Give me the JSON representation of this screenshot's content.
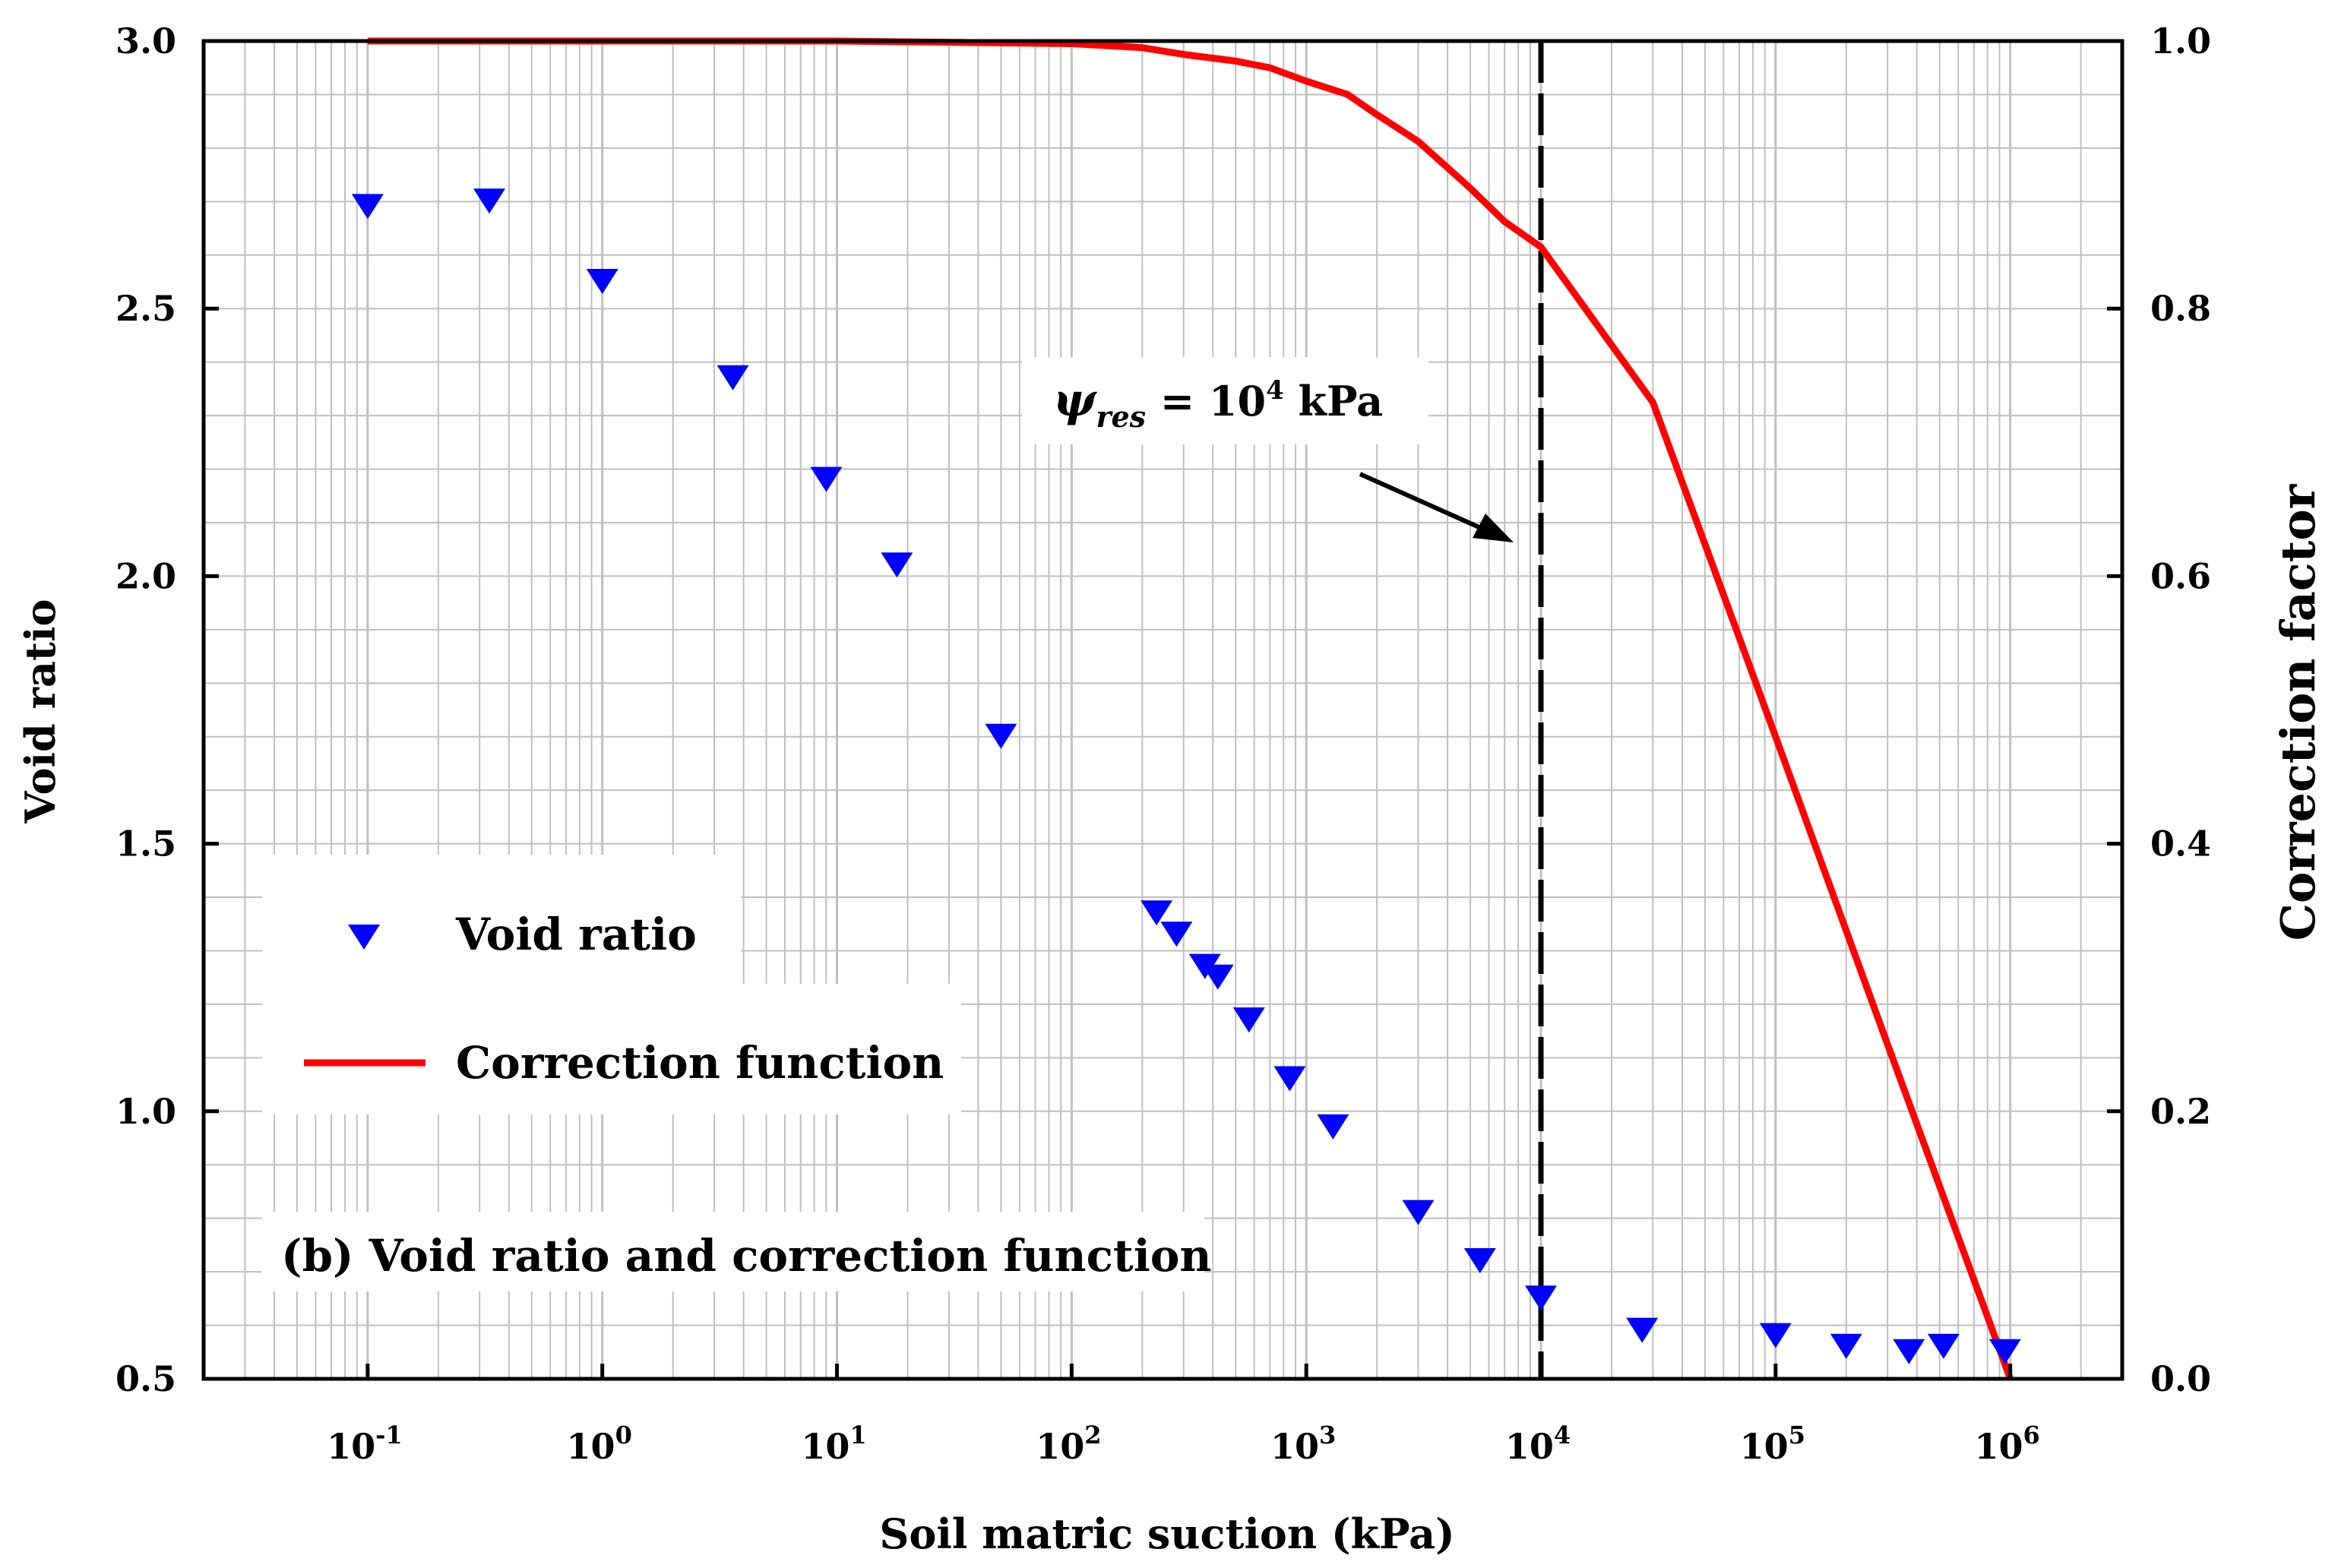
{
  "chart_data": {
    "type": "scatter+line",
    "title": "(b) Void ratio and correction function",
    "xlabel": "Soil matric suction (kPa)",
    "ylabel_left": "Void ratio",
    "ylabel_right": "Correction factor",
    "x_scale": "log",
    "xlim": [
      0.02,
      3000000
    ],
    "ylim_left": [
      0.5,
      3.0
    ],
    "ylim_right": [
      0.0,
      1.0
    ],
    "x_ticks": [
      {
        "exp": "-1",
        "value": 0.1
      },
      {
        "exp": "0",
        "value": 1
      },
      {
        "exp": "1",
        "value": 10
      },
      {
        "exp": "2",
        "value": 100
      },
      {
        "exp": "3",
        "value": 1000
      },
      {
        "exp": "4",
        "value": 10000
      },
      {
        "exp": "5",
        "value": 100000
      },
      {
        "exp": "6",
        "value": 1000000
      }
    ],
    "y_ticks_left": [
      "0.5",
      "1.0",
      "1.5",
      "2.0",
      "2.5",
      "3.0"
    ],
    "y_ticks_right": [
      "0.0",
      "0.2",
      "0.4",
      "0.6",
      "0.8",
      "1.0"
    ],
    "grid": true,
    "series": [
      {
        "name": "Void ratio",
        "kind": "scatter",
        "axis": "left",
        "marker": "triangle-down",
        "color": "#0000ff",
        "points": [
          [
            0.1,
            2.69
          ],
          [
            0.33,
            2.7
          ],
          [
            1.0,
            2.55
          ],
          [
            3.6,
            2.37
          ],
          [
            9.0,
            2.18
          ],
          [
            18,
            2.02
          ],
          [
            50,
            1.7
          ],
          [
            230,
            1.37
          ],
          [
            280,
            1.33
          ],
          [
            370,
            1.27
          ],
          [
            420,
            1.25
          ],
          [
            570,
            1.17
          ],
          [
            850,
            1.06
          ],
          [
            1300,
            0.97
          ],
          [
            3000,
            0.81
          ],
          [
            5500,
            0.72
          ],
          [
            10000,
            0.65
          ],
          [
            27000,
            0.59
          ],
          [
            100000,
            0.58
          ],
          [
            200000,
            0.56
          ],
          [
            370000,
            0.55
          ],
          [
            520000,
            0.56
          ],
          [
            950000,
            0.55
          ]
        ]
      },
      {
        "name": "Correction function",
        "kind": "line",
        "axis": "right",
        "color": "#ff0000",
        "points": [
          [
            0.1,
            1.0
          ],
          [
            1,
            1.0
          ],
          [
            10,
            1.0
          ],
          [
            100,
            0.998
          ],
          [
            200,
            0.995
          ],
          [
            300,
            0.99
          ],
          [
            500,
            0.985
          ],
          [
            700,
            0.98
          ],
          [
            1000,
            0.97
          ],
          [
            1500,
            0.96
          ],
          [
            2000,
            0.945
          ],
          [
            3000,
            0.925
          ],
          [
            5000,
            0.89
          ],
          [
            7000,
            0.865
          ],
          [
            10000,
            0.846
          ],
          [
            30000,
            0.73
          ],
          [
            100000,
            0.48
          ],
          [
            300000,
            0.25
          ],
          [
            1000000,
            0.0
          ]
        ]
      }
    ],
    "annotation": {
      "psi": "ψ",
      "sub": "res",
      "equals": " = 10",
      "sup": "4",
      "unit": " kPa",
      "x": 10000
    },
    "legend": {
      "placement": "lower-left",
      "items": [
        {
          "label": "Void ratio",
          "marker": "triangle-down",
          "color": "#0000ff"
        },
        {
          "label": "Correction function",
          "marker": "line",
          "color": "#ff0000"
        }
      ]
    }
  }
}
